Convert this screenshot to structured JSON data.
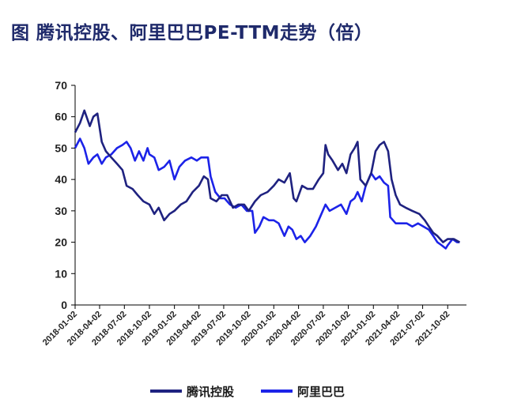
{
  "title": "图 腾讯控股、阿里巴巴PE-TTM走势（倍）",
  "chart_data": {
    "type": "line",
    "title": "图 腾讯控股、阿里巴巴PE-TTM走势（倍）",
    "ylim": [
      0,
      70
    ],
    "yticks": [
      0,
      10,
      20,
      30,
      40,
      50,
      60,
      70
    ],
    "xticks": [
      "2018-01-02",
      "2018-04-02",
      "2018-07-02",
      "2018-10-02",
      "2019-01-02",
      "2019-04-02",
      "2019-07-02",
      "2019-10-02",
      "2020-01-02",
      "2020-04-02",
      "2020-07-02",
      "2020-10-02",
      "2021-01-02",
      "2021-04-02",
      "2021-07-02",
      "2021-10-02"
    ],
    "grid": false,
    "legend_position": "bottom",
    "series": [
      {
        "name": "腾讯控股",
        "color": "#1f2280",
        "points": [
          [
            "2018-01-02",
            55
          ],
          [
            "2018-01-20",
            58
          ],
          [
            "2018-02-05",
            62
          ],
          [
            "2018-02-25",
            57
          ],
          [
            "2018-03-10",
            60
          ],
          [
            "2018-03-25",
            61
          ],
          [
            "2018-04-10",
            52
          ],
          [
            "2018-04-25",
            49
          ],
          [
            "2018-05-15",
            47
          ],
          [
            "2018-06-05",
            45
          ],
          [
            "2018-06-25",
            43
          ],
          [
            "2018-07-10",
            38
          ],
          [
            "2018-08-01",
            37
          ],
          [
            "2018-08-20",
            35
          ],
          [
            "2018-09-10",
            33
          ],
          [
            "2018-10-02",
            32
          ],
          [
            "2018-10-20",
            29
          ],
          [
            "2018-11-05",
            31
          ],
          [
            "2018-11-25",
            27
          ],
          [
            "2018-12-15",
            29
          ],
          [
            "2019-01-02",
            30
          ],
          [
            "2019-01-25",
            32
          ],
          [
            "2019-02-15",
            33
          ],
          [
            "2019-03-10",
            36
          ],
          [
            "2019-04-02",
            38
          ],
          [
            "2019-04-20",
            41
          ],
          [
            "2019-05-05",
            40
          ],
          [
            "2019-05-15",
            34
          ],
          [
            "2019-06-05",
            33
          ],
          [
            "2019-06-25",
            35
          ],
          [
            "2019-07-15",
            35
          ],
          [
            "2019-08-05",
            31
          ],
          [
            "2019-08-25",
            32
          ],
          [
            "2019-09-15",
            32
          ],
          [
            "2019-10-02",
            30
          ],
          [
            "2019-10-25",
            33
          ],
          [
            "2019-11-15",
            35
          ],
          [
            "2019-12-10",
            36
          ],
          [
            "2020-01-02",
            38
          ],
          [
            "2020-01-20",
            40
          ],
          [
            "2020-02-10",
            39
          ],
          [
            "2020-03-01",
            42
          ],
          [
            "2020-03-15",
            34
          ],
          [
            "2020-03-25",
            33
          ],
          [
            "2020-04-15",
            38
          ],
          [
            "2020-05-05",
            37
          ],
          [
            "2020-05-25",
            37
          ],
          [
            "2020-06-15",
            40
          ],
          [
            "2020-07-02",
            42
          ],
          [
            "2020-07-10",
            51
          ],
          [
            "2020-07-20",
            48
          ],
          [
            "2020-08-05",
            46
          ],
          [
            "2020-08-25",
            43
          ],
          [
            "2020-09-10",
            45
          ],
          [
            "2020-09-25",
            42
          ],
          [
            "2020-10-10",
            48
          ],
          [
            "2020-10-25",
            50
          ],
          [
            "2020-11-05",
            52
          ],
          [
            "2020-11-15",
            40
          ],
          [
            "2020-12-05",
            38
          ],
          [
            "2020-12-25",
            42
          ],
          [
            "2021-01-10",
            49
          ],
          [
            "2021-01-25",
            51
          ],
          [
            "2021-02-10",
            52
          ],
          [
            "2021-02-25",
            49
          ],
          [
            "2021-03-10",
            40
          ],
          [
            "2021-03-25",
            35
          ],
          [
            "2021-04-10",
            32
          ],
          [
            "2021-05-01",
            31
          ],
          [
            "2021-05-25",
            30
          ],
          [
            "2021-06-20",
            29
          ],
          [
            "2021-07-10",
            27
          ],
          [
            "2021-07-25",
            25
          ],
          [
            "2021-08-10",
            23
          ],
          [
            "2021-08-25",
            22
          ],
          [
            "2021-09-15",
            20
          ],
          [
            "2021-10-02",
            21
          ],
          [
            "2021-10-25",
            21
          ],
          [
            "2021-11-15",
            20
          ]
        ]
      },
      {
        "name": "阿里巴巴",
        "color": "#1c23e8",
        "points": [
          [
            "2018-01-02",
            50
          ],
          [
            "2018-01-20",
            53
          ],
          [
            "2018-02-05",
            50
          ],
          [
            "2018-02-20",
            45
          ],
          [
            "2018-03-10",
            47
          ],
          [
            "2018-03-25",
            48
          ],
          [
            "2018-04-10",
            45
          ],
          [
            "2018-04-25",
            47
          ],
          [
            "2018-05-15",
            48
          ],
          [
            "2018-06-05",
            50
          ],
          [
            "2018-06-25",
            51
          ],
          [
            "2018-07-10",
            52
          ],
          [
            "2018-07-25",
            50
          ],
          [
            "2018-08-10",
            46
          ],
          [
            "2018-08-25",
            49
          ],
          [
            "2018-09-10",
            46
          ],
          [
            "2018-09-25",
            50
          ],
          [
            "2018-10-02",
            48
          ],
          [
            "2018-10-20",
            47
          ],
          [
            "2018-11-05",
            43
          ],
          [
            "2018-11-25",
            44
          ],
          [
            "2018-12-15",
            46
          ],
          [
            "2019-01-02",
            40
          ],
          [
            "2019-01-20",
            44
          ],
          [
            "2019-02-10",
            46
          ],
          [
            "2019-03-05",
            47
          ],
          [
            "2019-03-25",
            46
          ],
          [
            "2019-04-10",
            47
          ],
          [
            "2019-05-05",
            47
          ],
          [
            "2019-05-15",
            41
          ],
          [
            "2019-06-01",
            36
          ],
          [
            "2019-06-20",
            34
          ],
          [
            "2019-07-05",
            34
          ],
          [
            "2019-07-25",
            32
          ],
          [
            "2019-08-15",
            31
          ],
          [
            "2019-09-05",
            32
          ],
          [
            "2019-09-25",
            30
          ],
          [
            "2019-10-02",
            30
          ],
          [
            "2019-10-15",
            30
          ],
          [
            "2019-10-25",
            23
          ],
          [
            "2019-11-10",
            25
          ],
          [
            "2019-11-25",
            28
          ],
          [
            "2019-12-15",
            27
          ],
          [
            "2020-01-02",
            27
          ],
          [
            "2020-01-20",
            26
          ],
          [
            "2020-02-10",
            22
          ],
          [
            "2020-02-25",
            25
          ],
          [
            "2020-03-10",
            24
          ],
          [
            "2020-03-25",
            21
          ],
          [
            "2020-04-10",
            22
          ],
          [
            "2020-04-25",
            20
          ],
          [
            "2020-05-15",
            22
          ],
          [
            "2020-06-05",
            25
          ],
          [
            "2020-06-25",
            29
          ],
          [
            "2020-07-10",
            32
          ],
          [
            "2020-07-25",
            30
          ],
          [
            "2020-08-15",
            31
          ],
          [
            "2020-09-05",
            32
          ],
          [
            "2020-09-25",
            29
          ],
          [
            "2020-10-10",
            33
          ],
          [
            "2020-10-25",
            34
          ],
          [
            "2020-11-05",
            36
          ],
          [
            "2020-11-20",
            33
          ],
          [
            "2020-12-05",
            38
          ],
          [
            "2020-12-25",
            42
          ],
          [
            "2021-01-10",
            40
          ],
          [
            "2021-01-25",
            41
          ],
          [
            "2021-02-10",
            39
          ],
          [
            "2021-02-25",
            38
          ],
          [
            "2021-03-05",
            28
          ],
          [
            "2021-03-25",
            26
          ],
          [
            "2021-04-15",
            26
          ],
          [
            "2021-05-05",
            26
          ],
          [
            "2021-05-25",
            25
          ],
          [
            "2021-06-15",
            26
          ],
          [
            "2021-07-05",
            25
          ],
          [
            "2021-07-25",
            24
          ],
          [
            "2021-08-10",
            22
          ],
          [
            "2021-08-25",
            20
          ],
          [
            "2021-09-10",
            19
          ],
          [
            "2021-09-25",
            18
          ],
          [
            "2021-10-02",
            19
          ],
          [
            "2021-10-20",
            21
          ],
          [
            "2021-11-05",
            20
          ],
          [
            "2021-11-15",
            20
          ]
        ]
      }
    ]
  },
  "legend": {
    "items": [
      {
        "label": "腾讯控股",
        "color": "#1f2280"
      },
      {
        "label": "阿里巴巴",
        "color": "#1c23e8"
      }
    ]
  }
}
